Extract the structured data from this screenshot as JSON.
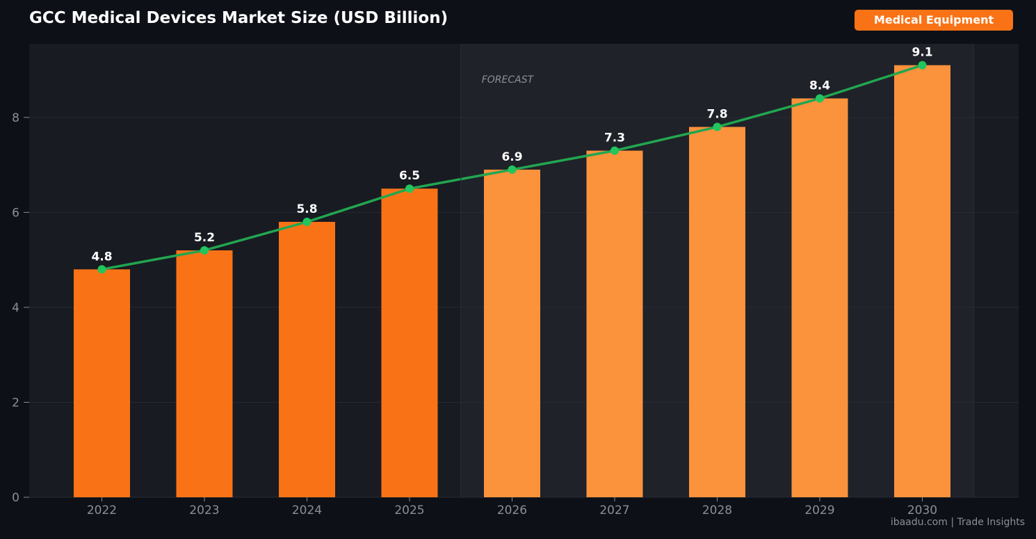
{
  "header": {
    "title": "GCC Medical Devices Market Size (USD Billion)",
    "badge": "Medical Equipment"
  },
  "footer": {
    "watermark": "ibaadu.com | Trade Insights"
  },
  "colors": {
    "background": "#0d1017",
    "plot_background": "#181b22",
    "forecast_band": "#1f2229",
    "historical_bar": "#f97316",
    "forecast_bar": "#fb923c",
    "trend_line": "#22a650",
    "trend_marker": "#22c55e",
    "badge": "#f97316"
  },
  "chart_data": {
    "type": "bar",
    "title": "GCC Medical Devices Market Size (USD Billion)",
    "categories": [
      "2022",
      "2023",
      "2024",
      "2025",
      "2026",
      "2027",
      "2028",
      "2029",
      "2030"
    ],
    "series": [
      {
        "values": [
          4.8,
          5.2,
          5.8,
          6.5,
          6.9,
          7.3,
          7.8,
          8.4,
          9.1
        ]
      }
    ],
    "data_labels": [
      "4.8",
      "5.2",
      "5.8",
      "6.5",
      "6.9",
      "7.3",
      "7.8",
      "8.4",
      "9.1"
    ],
    "forecast_categories": [
      "2026",
      "2027",
      "2028",
      "2029",
      "2030"
    ],
    "forecast_annotation": "FORECAST",
    "trend_line": true,
    "ylim": [
      0,
      9.55
    ],
    "yticks": [
      0,
      2,
      4,
      6,
      8
    ],
    "ytick_labels": [
      "0",
      "2",
      "4",
      "6",
      "8"
    ],
    "grid": "horizontal",
    "xlabel": "",
    "ylabel": ""
  }
}
